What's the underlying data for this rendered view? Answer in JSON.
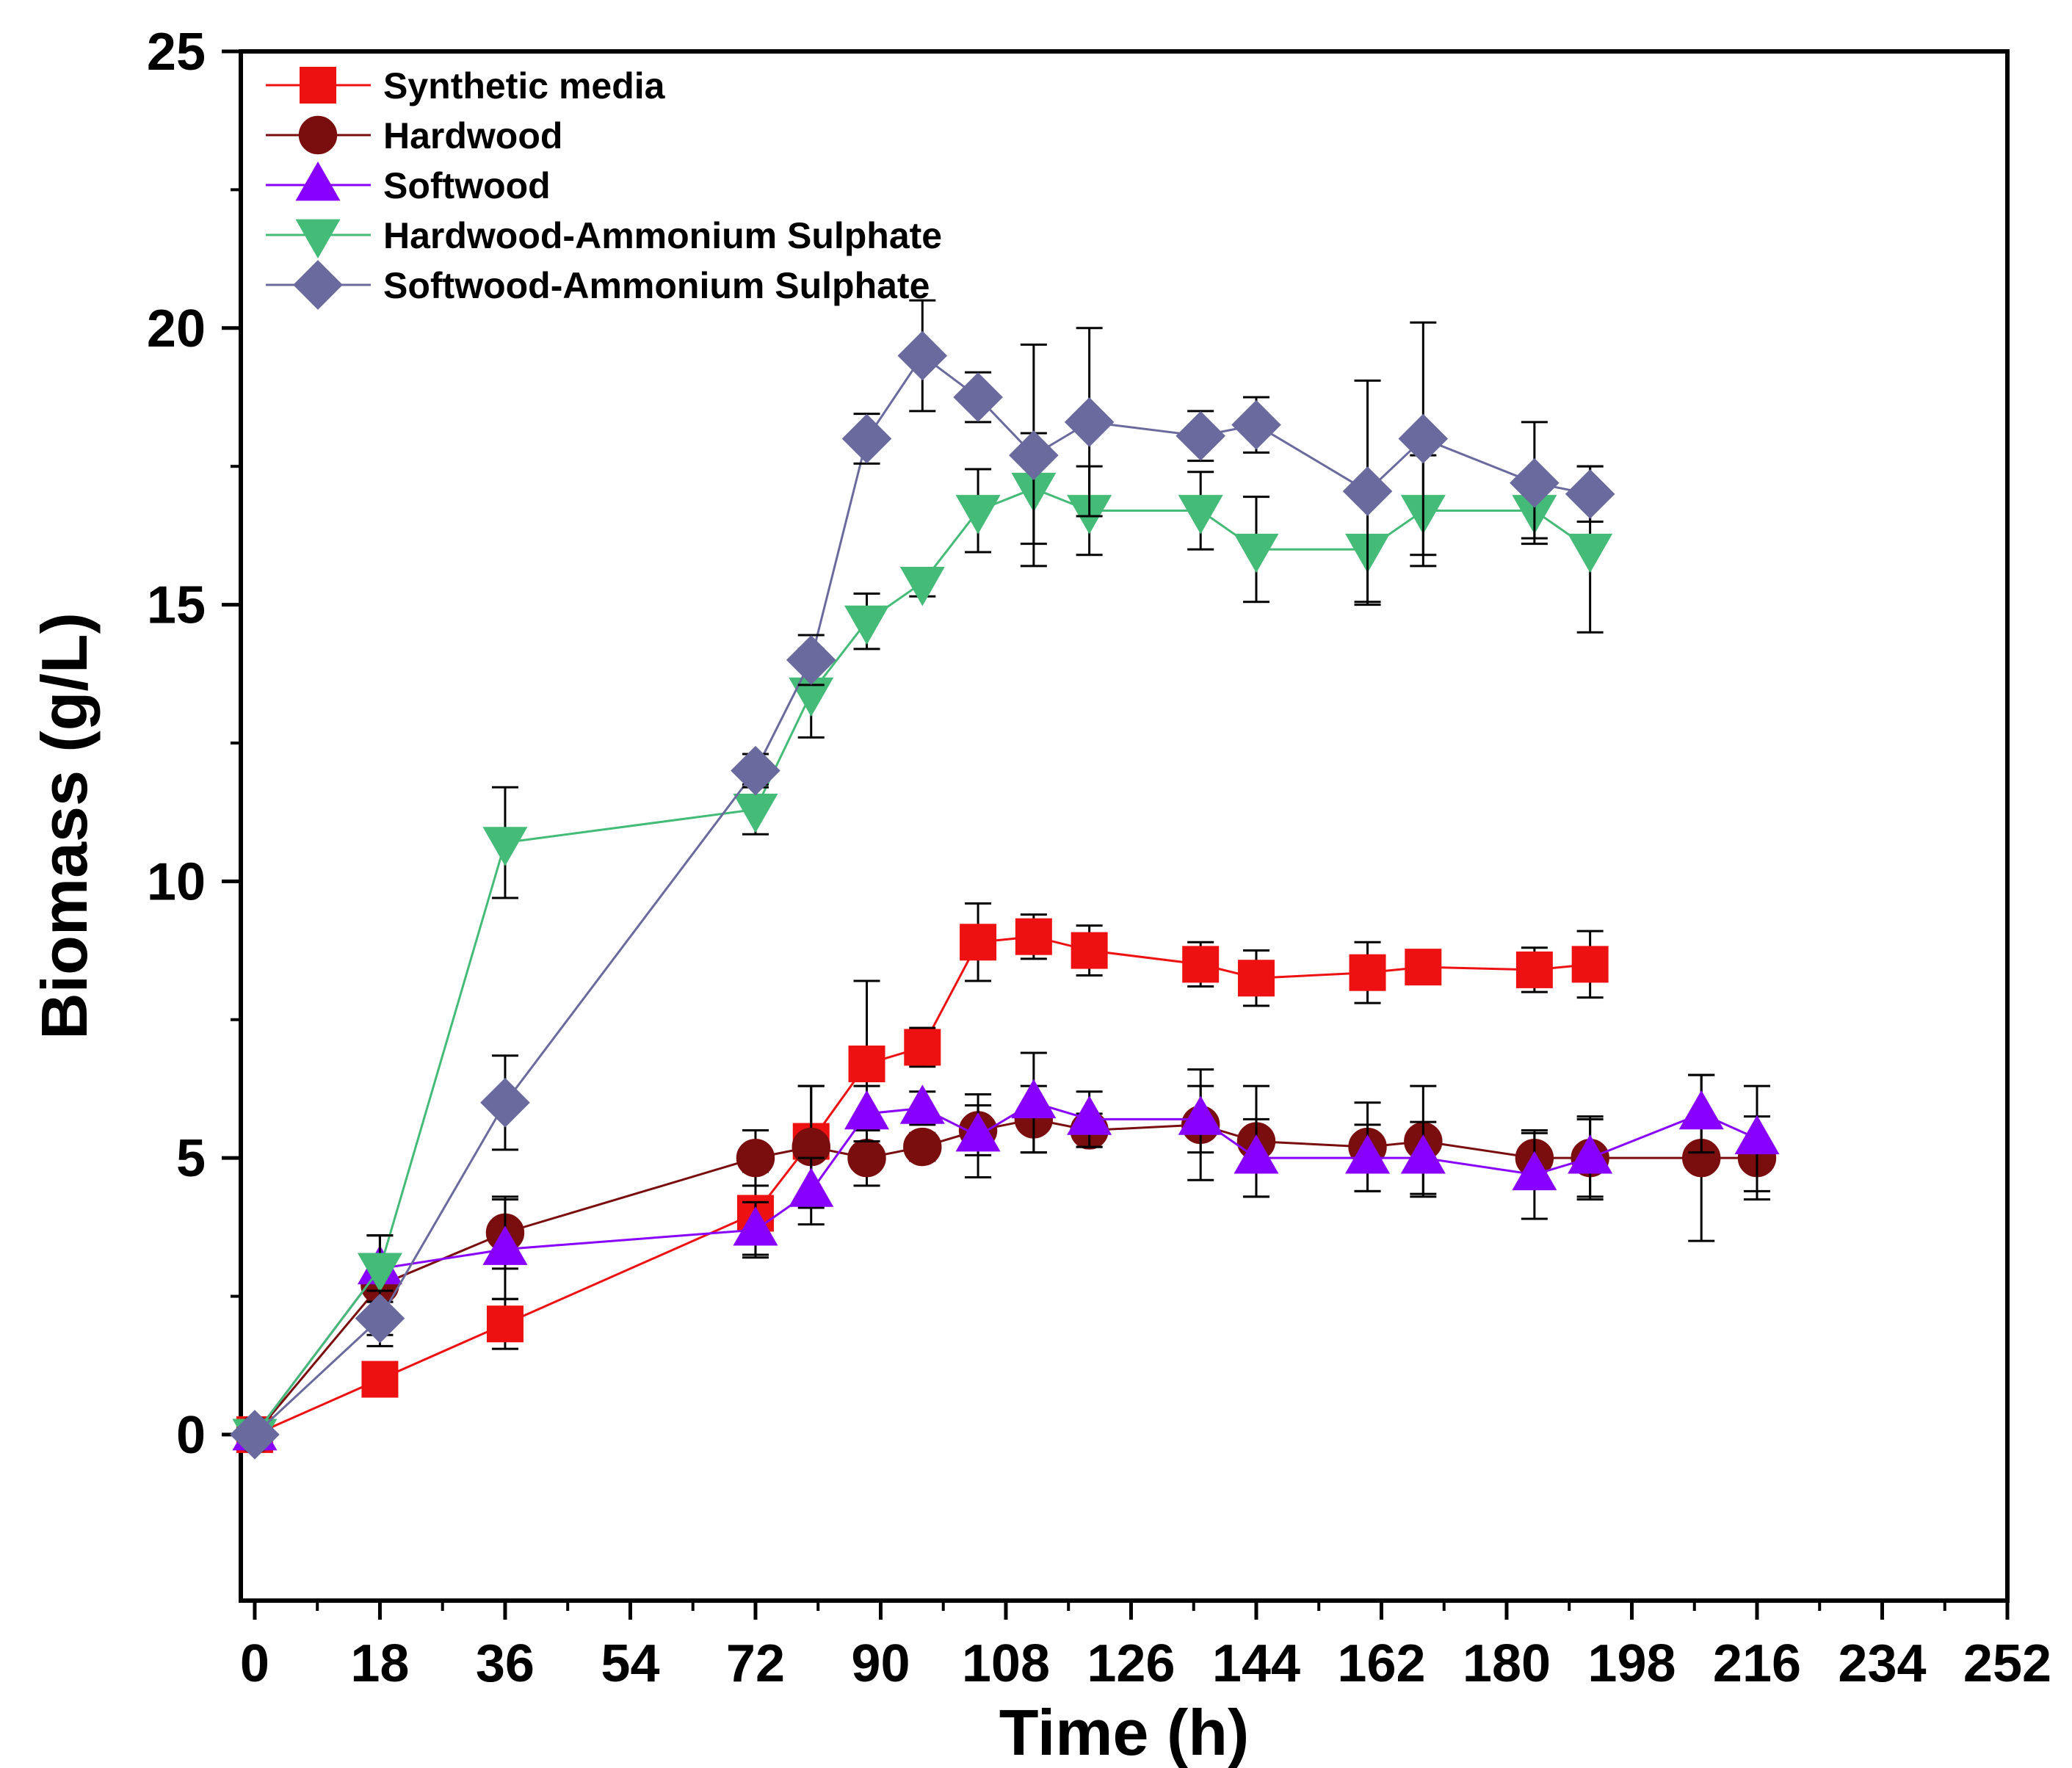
{
  "chart_data": {
    "type": "line",
    "title": "",
    "xlabel": "Time (h)",
    "ylabel": "Biomass (g/L)",
    "xlim": [
      -2,
      252
    ],
    "ylim": [
      -3,
      25
    ],
    "xticks": [
      0,
      18,
      36,
      54,
      72,
      90,
      108,
      126,
      144,
      162,
      180,
      198,
      216,
      234,
      252
    ],
    "yticks": [
      0,
      5,
      10,
      15,
      20,
      25
    ],
    "xtick_labels": [
      "0",
      "18",
      "36",
      "54",
      "72",
      "90",
      "108",
      "126",
      "144",
      "162",
      "180",
      "198",
      "216",
      "234",
      "252"
    ],
    "ytick_labels": [
      "0",
      "5",
      "10",
      "15",
      "20",
      "25"
    ],
    "legend_position": "top-left",
    "series": [
      {
        "name": "Synthetic media",
        "color": "#ee1111",
        "marker": "square",
        "x": [
          0,
          18,
          36,
          72,
          80,
          88,
          96,
          104,
          112,
          120,
          136,
          144,
          160,
          168,
          184,
          192
        ],
        "y": [
          0,
          1,
          2,
          4,
          5.3,
          6.7,
          7,
          8.9,
          9,
          8.75,
          8.5,
          8.25,
          8.35,
          8.45,
          8.4,
          8.5
        ],
        "err": [
          0,
          0.25,
          0.45,
          0.75,
          1.0,
          1.5,
          0.35,
          0.7,
          0.4,
          0.45,
          0.4,
          0.5,
          0.55,
          0.3,
          0.4,
          0.6
        ]
      },
      {
        "name": "Hardwood",
        "color": "#7a0d0d",
        "marker": "circle",
        "x": [
          0,
          18,
          36,
          72,
          80,
          88,
          96,
          104,
          112,
          120,
          136,
          144,
          160,
          168,
          184,
          192,
          208,
          216
        ],
        "y": [
          0,
          2.7,
          3.65,
          5,
          5.2,
          5,
          5.2,
          5.5,
          5.7,
          5.5,
          5.6,
          5.3,
          5.2,
          5.3,
          5,
          5,
          5,
          5
        ],
        "err": [
          0,
          0.9,
          0.65,
          0.5,
          1.1,
          0.5,
          0.25,
          0.45,
          0.6,
          0.3,
          1.0,
          1.0,
          0.8,
          1.0,
          0.45,
          0.75,
          1.5,
          0.75
        ]
      },
      {
        "name": "Softwood",
        "color": "#8800ff",
        "marker": "triangle-up",
        "x": [
          0,
          18,
          36,
          72,
          80,
          88,
          96,
          104,
          112,
          120,
          136,
          144,
          160,
          168,
          184,
          192,
          208,
          216
        ],
        "y": [
          0,
          3,
          3.35,
          3.7,
          4.4,
          5.8,
          5.9,
          5.4,
          6,
          5.7,
          5.7,
          5,
          5,
          5,
          4.7,
          5,
          5.8,
          5.35
        ],
        "err": [
          0,
          0.6,
          0.9,
          0.5,
          0.6,
          0.5,
          0.3,
          0.75,
          0.9,
          0.5,
          0.6,
          0.7,
          0.6,
          0.65,
          0.8,
          0.7,
          0.7,
          0.95
        ]
      },
      {
        "name": "Hardwood-Ammonium Sulphate",
        "color": "#44bb77",
        "marker": "triangle-down",
        "x": [
          0,
          18,
          36,
          72,
          80,
          88,
          96,
          104,
          112,
          120,
          136,
          144,
          160,
          168,
          184,
          192
        ],
        "y": [
          0,
          3,
          10.7,
          11.3,
          13.4,
          14.7,
          15.4,
          16.7,
          17.1,
          16.7,
          16.7,
          16,
          16,
          16.7,
          16.7,
          16
        ],
        "err": [
          0,
          0.6,
          1.0,
          0.45,
          0.8,
          0.5,
          0.25,
          0.75,
          1.0,
          0.8,
          0.7,
          0.95,
          1.0,
          1.0,
          0.5,
          1.5
        ]
      },
      {
        "name": "Softwood-Ammonium Sulphate",
        "color": "#6a6a9e",
        "marker": "diamond",
        "x": [
          0,
          18,
          36,
          72,
          80,
          88,
          96,
          104,
          112,
          120,
          136,
          144,
          160,
          168,
          184,
          192
        ],
        "y": [
          0,
          2.1,
          6,
          12,
          14,
          18,
          19.5,
          18.75,
          17.7,
          18.3,
          18.05,
          18.25,
          17.05,
          18,
          17.2,
          17
        ],
        "err": [
          0,
          0.5,
          0.85,
          0.3,
          0.45,
          0.45,
          1.0,
          0.45,
          2.0,
          1.7,
          0.45,
          0.5,
          2.0,
          2.1,
          1.1,
          0.5
        ]
      }
    ]
  }
}
